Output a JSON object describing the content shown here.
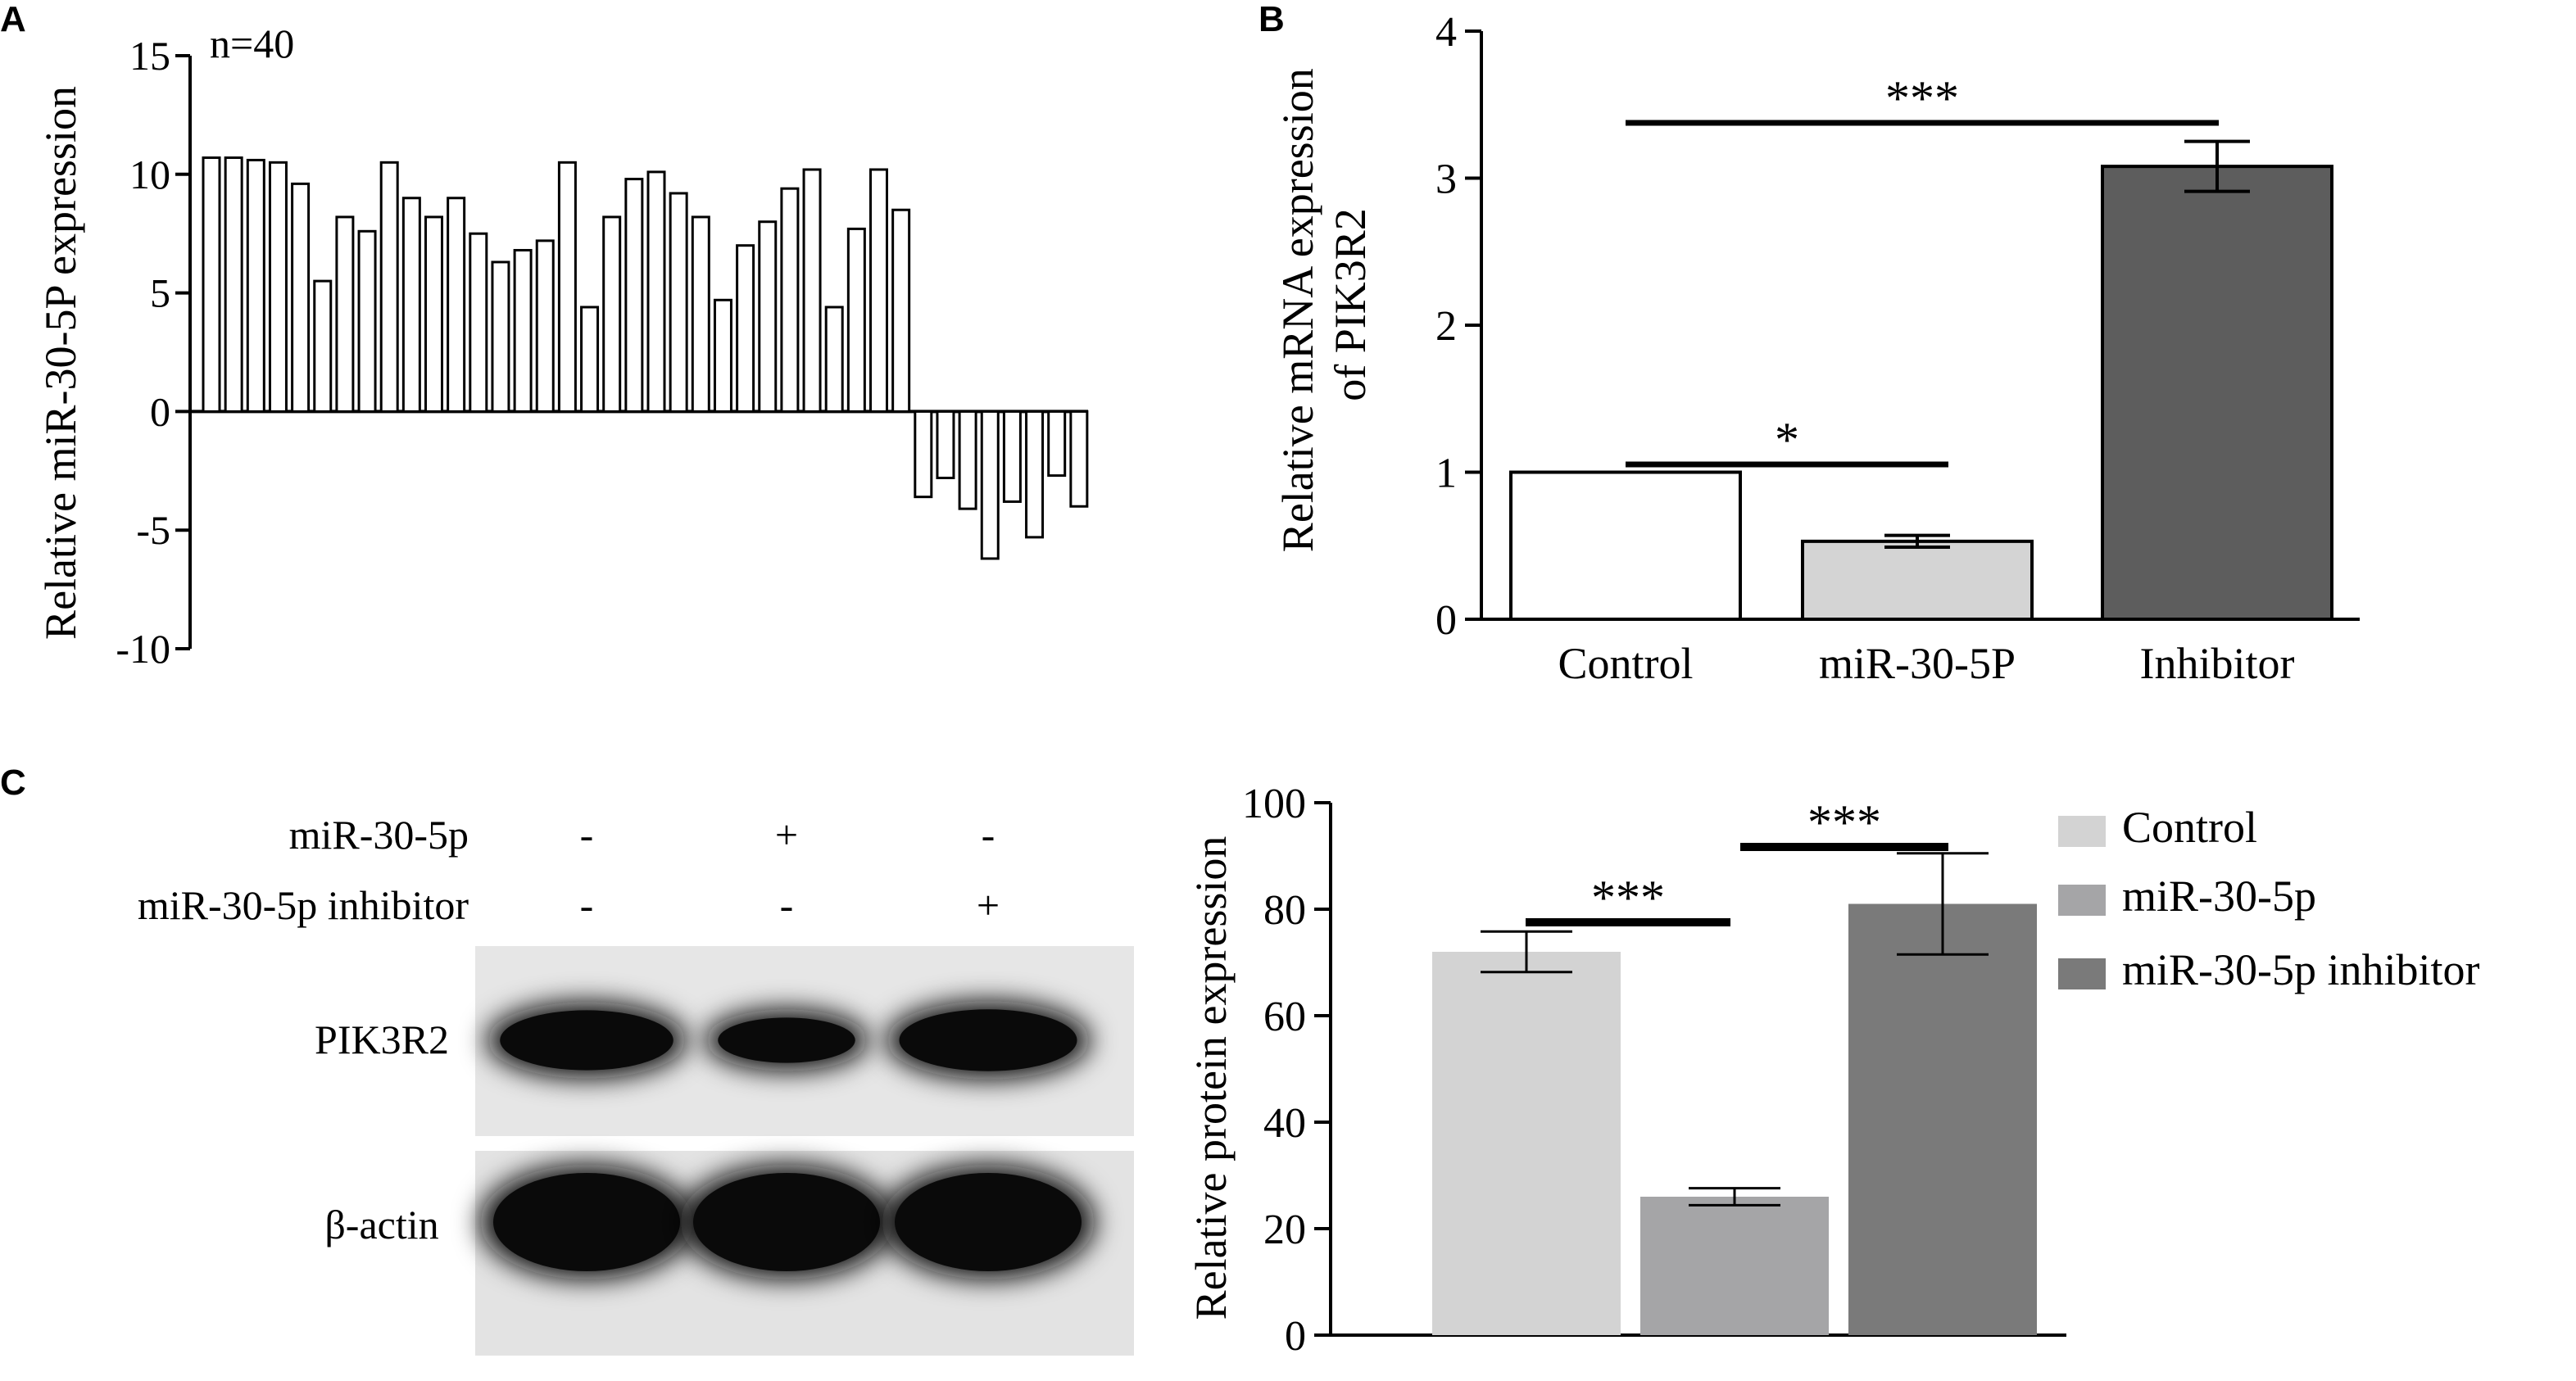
{
  "panels": {
    "a": {
      "letter": "A"
    },
    "b": {
      "letter": "B"
    },
    "c": {
      "letter": "C"
    }
  },
  "colors": {
    "axis": "#000000",
    "bar_outline": "#000000",
    "bar_white": "#ffffff",
    "bar_light": "#d4d4d4",
    "bar_dark": "#5d5d5d",
    "c_control": "#d3d3d3",
    "c_mir": "#a5a5a7",
    "c_inhibitor": "#7a7a7a"
  },
  "western_blot": {
    "row_labels": [
      "miR-30-5p",
      "miR-30-5p inhibitor"
    ],
    "row_signs": [
      [
        "-",
        "+",
        "-"
      ],
      [
        "-",
        "-",
        "+"
      ]
    ],
    "band_labels": [
      "PIK3R2",
      "β-actin"
    ],
    "band_intensity": [
      [
        0.85,
        0.45,
        0.9
      ],
      [
        1.0,
        1.0,
        1.0
      ]
    ]
  },
  "chart_data": [
    {
      "id": "A",
      "type": "bar",
      "title": "",
      "annotation": "n=40",
      "ylabel": "Relative miR-30-5P expression",
      "xlabel": "",
      "ylim": [
        -10,
        15
      ],
      "yticks": [
        15,
        10,
        5,
        0,
        -5,
        -10
      ],
      "values": [
        10.7,
        10.7,
        10.6,
        10.5,
        9.6,
        5.5,
        8.2,
        7.6,
        10.5,
        9.0,
        8.2,
        9.0,
        7.5,
        6.3,
        6.8,
        7.2,
        10.5,
        4.4,
        8.2,
        9.8,
        10.1,
        9.2,
        8.2,
        4.7,
        7.0,
        8.0,
        9.4,
        10.2,
        4.4,
        7.7,
        10.2,
        8.5,
        -3.6,
        -2.8,
        -4.1,
        -6.2,
        -3.8,
        -5.3,
        -2.7,
        -4.0
      ]
    },
    {
      "id": "B",
      "type": "bar",
      "title": "",
      "ylabel": "Relative mRNA expression of PIK3R2",
      "xlabel": "",
      "ylim": [
        0,
        4
      ],
      "yticks": [
        0,
        1,
        2,
        3,
        4
      ],
      "categories": [
        "Control",
        "miR-30-5P",
        "Inhibitor"
      ],
      "values": [
        1.0,
        0.53,
        3.08
      ],
      "errors": [
        0,
        0.04,
        0.17
      ],
      "significance": [
        {
          "from": 0,
          "to": 1,
          "label": "*"
        },
        {
          "from": 0,
          "to": 2,
          "label": "***"
        }
      ]
    },
    {
      "id": "C",
      "type": "bar",
      "title": "",
      "ylabel": "Relative protein expression",
      "xlabel": "",
      "ylim": [
        0,
        100
      ],
      "yticks": [
        0,
        20,
        40,
        60,
        80,
        100
      ],
      "categories": [
        "Control",
        "miR-30-5p",
        "miR-30-5p inhibitor"
      ],
      "values": [
        72,
        26,
        81
      ],
      "errors": [
        3.8,
        1.6,
        9.5
      ],
      "legend": [
        "Control",
        "miR-30-5p",
        "miR-30-5p inhibitor"
      ],
      "legend_position": "right",
      "significance": [
        {
          "from": 0,
          "to": 1,
          "label": "***"
        },
        {
          "from": 1,
          "to": 2,
          "label": "***"
        }
      ]
    }
  ]
}
